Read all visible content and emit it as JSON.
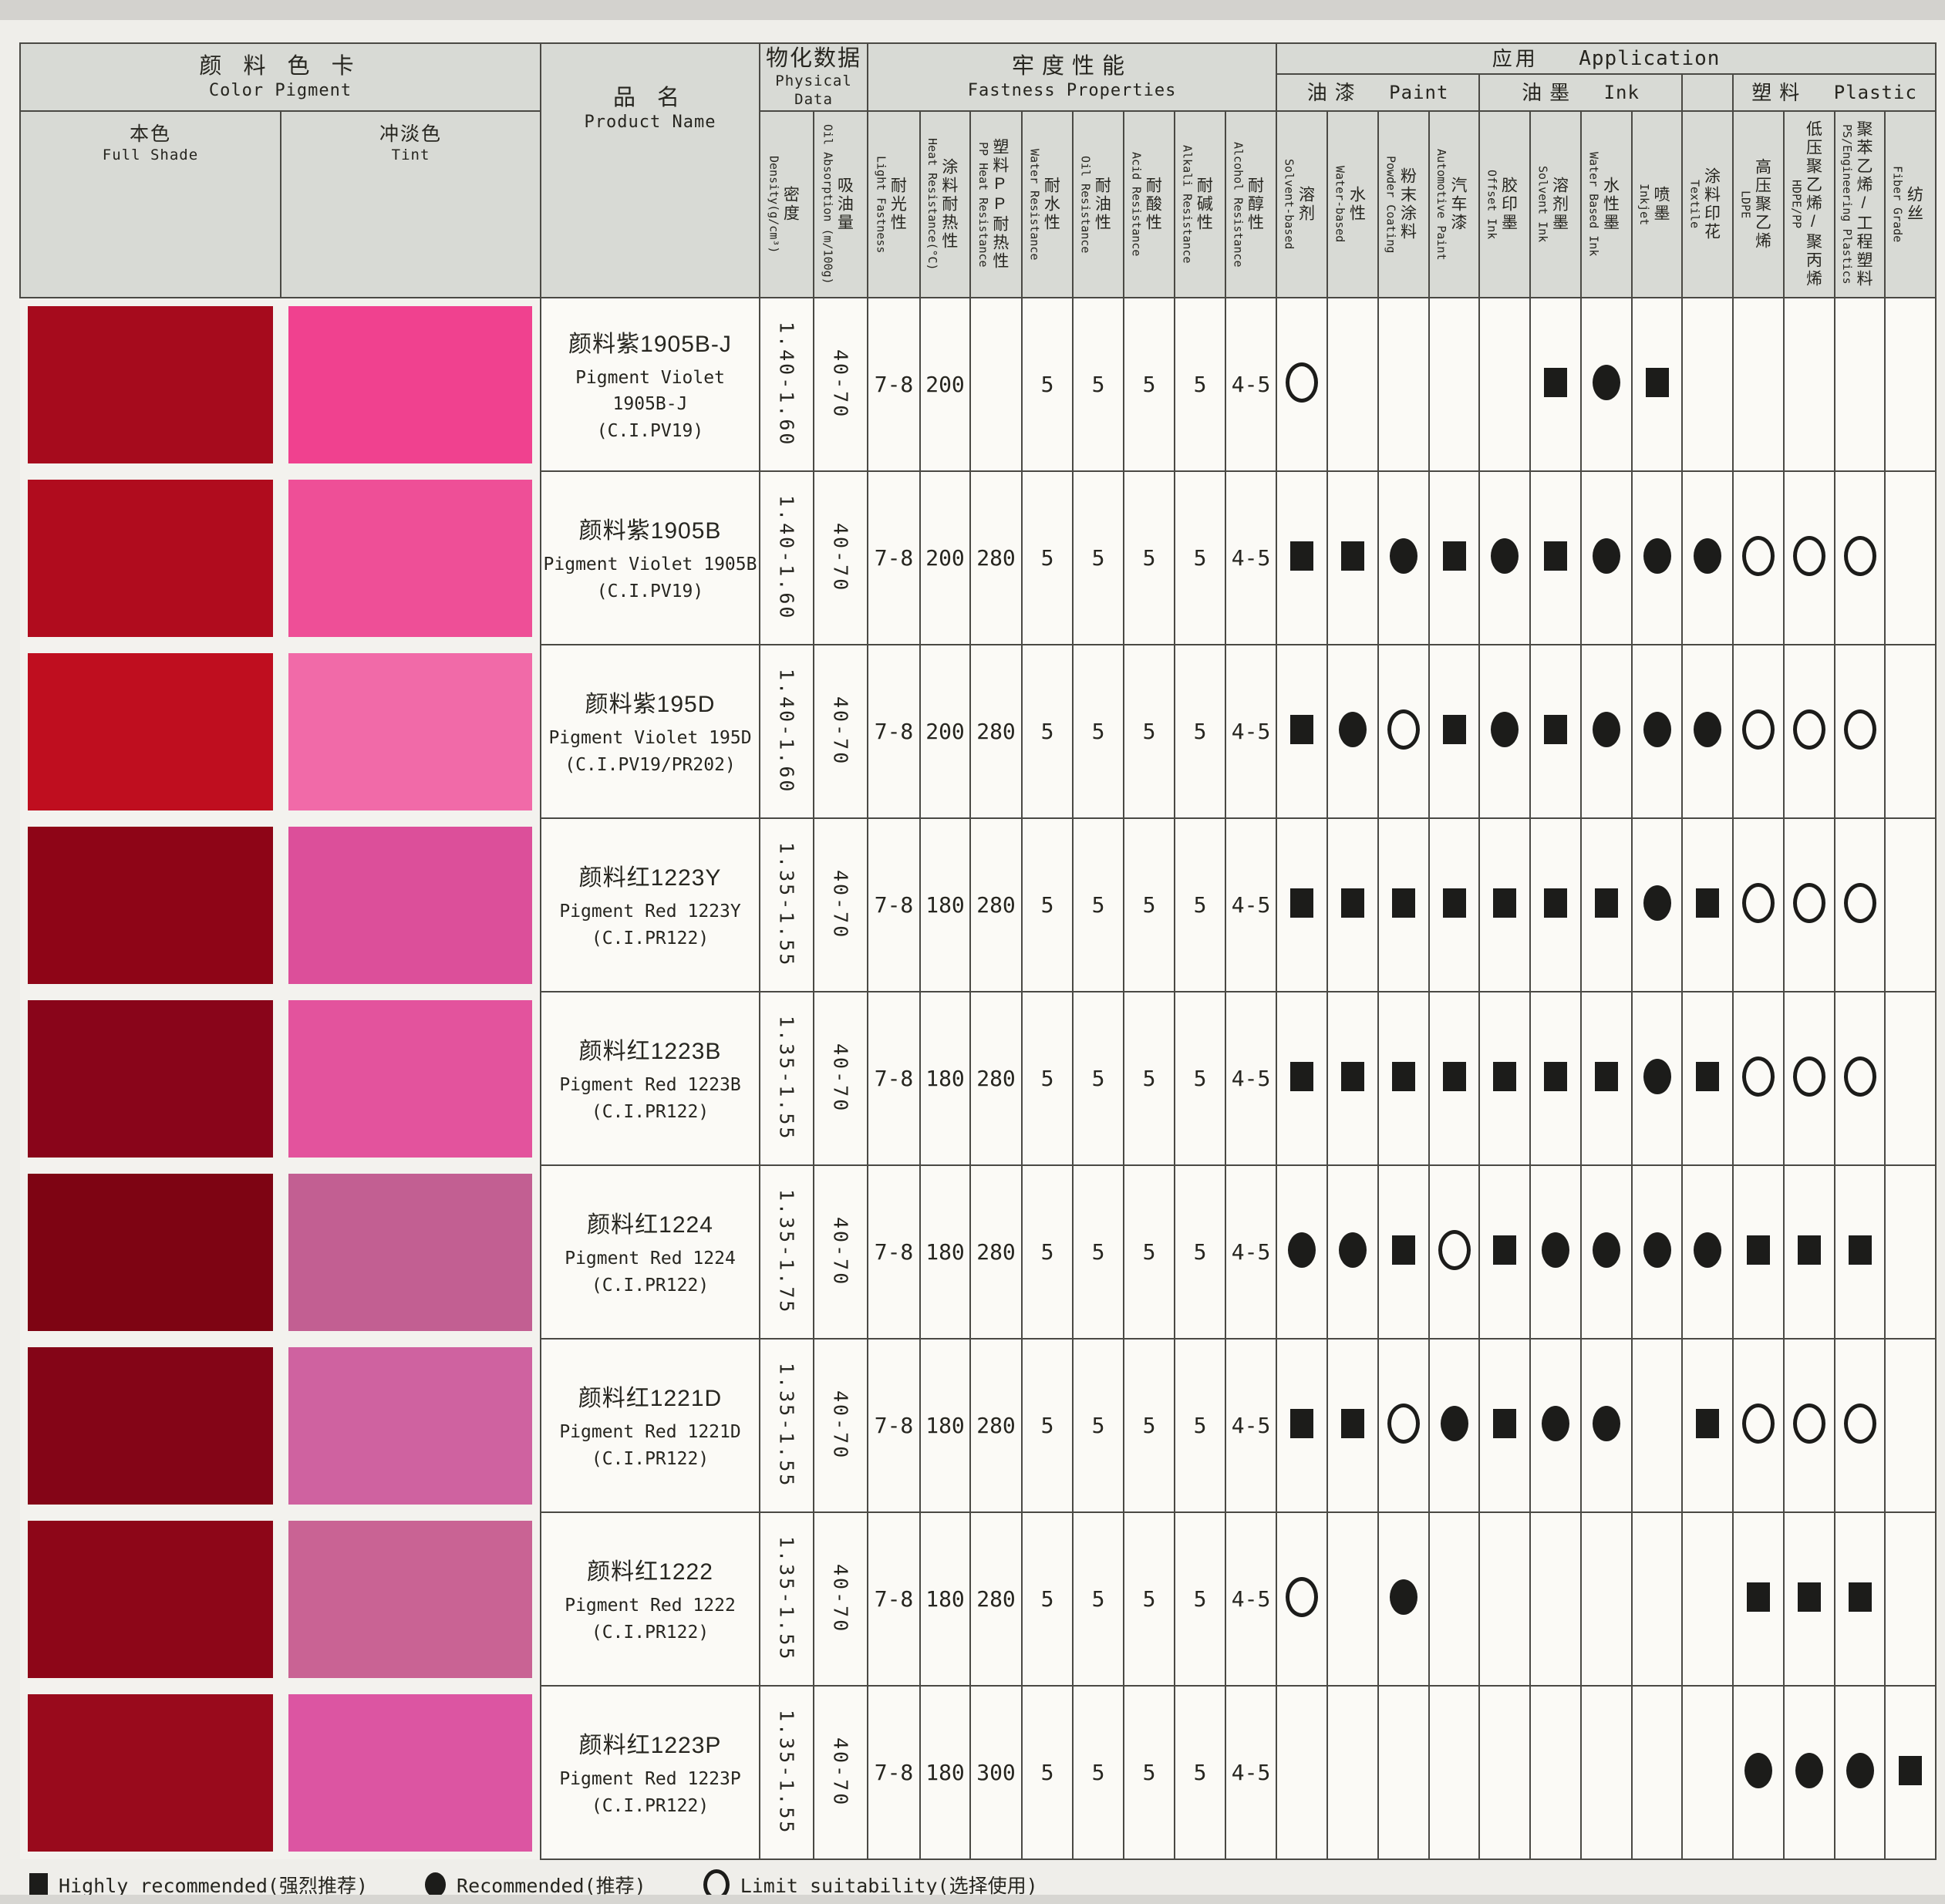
{
  "header": {
    "color_pigment": {
      "zh": "颜 料 色 卡",
      "en": "Color Pigment"
    },
    "full_shade": {
      "zh": "本色",
      "en": "Full Shade"
    },
    "tint": {
      "zh": "冲淡色",
      "en": "Tint"
    },
    "product_name": {
      "zh": "品 名",
      "en": "Product Name"
    },
    "physical_data": {
      "zh": "物化数据",
      "en": "Physical Data"
    },
    "fastness": {
      "zh": "牢度性能",
      "en": "Fastness Properties"
    },
    "application": {
      "zh": "应用",
      "en": "Application"
    },
    "paint": {
      "zh": "油漆",
      "en": "Paint"
    },
    "ink": {
      "zh": "油墨",
      "en": "Ink"
    },
    "plastic": {
      "zh": "塑料",
      "en": "Plastic"
    },
    "physical_cols": [
      {
        "key": "density",
        "zh": "密度",
        "en": "Density(g/cm³)"
      },
      {
        "key": "oil-absorption",
        "zh": "吸油量",
        "en": "Oil Absorption (m/100g)"
      }
    ],
    "fastness_cols": [
      {
        "key": "light-fastness",
        "zh": "耐光性",
        "en": "Light Fastness"
      },
      {
        "key": "heat-resistance",
        "zh": "涂料耐热性",
        "en": "Heat Resistance(°C)"
      },
      {
        "key": "pp-heat-resistance",
        "zh": "塑料PP耐热性",
        "en": "PP Heat Resistance"
      },
      {
        "key": "water-resistance",
        "zh": "耐水性",
        "en": "Water Resistance"
      },
      {
        "key": "oil-resistance",
        "zh": "耐油性",
        "en": "Oil Resistance"
      },
      {
        "key": "acid-resistance",
        "zh": "耐酸性",
        "en": "Acid Resistance"
      },
      {
        "key": "alkali-resistance",
        "zh": "耐碱性",
        "en": "Alkali Resistance"
      },
      {
        "key": "alcohol-resistance",
        "zh": "耐醇性",
        "en": "Alcohol Resistance"
      }
    ],
    "app_cols": [
      {
        "key": "paint-solvent",
        "zh": "溶剂",
        "en": "Solvent-based"
      },
      {
        "key": "paint-water",
        "zh": "水性",
        "en": "Water-based"
      },
      {
        "key": "paint-powder",
        "zh": "粉末涂料",
        "en": "Powder Coating"
      },
      {
        "key": "paint-automotive",
        "zh": "汽车漆",
        "en": "Automotive Paint"
      },
      {
        "key": "ink-offset",
        "zh": "胶印墨",
        "en": "Offset Ink"
      },
      {
        "key": "ink-solvent",
        "zh": "溶剂墨",
        "en": "Solvent Ink"
      },
      {
        "key": "ink-water",
        "zh": "水性墨",
        "en": "Water Based Ink"
      },
      {
        "key": "ink-inkjet",
        "zh": "喷墨",
        "en": "Inkjet"
      },
      {
        "key": "textile",
        "zh": "涂料印花",
        "en": "Textile"
      },
      {
        "key": "plastic-ldpe",
        "zh": "高压聚乙烯",
        "en": "LDPE"
      },
      {
        "key": "plastic-hdpe-pp",
        "zh": "低压聚乙烯/聚丙烯",
        "en": "HDPE/PP"
      },
      {
        "key": "plastic-ps-eng",
        "zh": "聚苯乙烯/工程塑料",
        "en": "PS/Engineering Plastics"
      },
      {
        "key": "plastic-fiber",
        "zh": "纺丝",
        "en": "Fiber Grade"
      }
    ]
  },
  "rows": [
    {
      "name_zh": "颜料紫1905B-J",
      "name_en": "Pigment Violet 1905B-J",
      "ci": "(C.I.PV19)",
      "full_shade": "#a60b1d",
      "tint": "#f0418f",
      "density": "1.40-1.60",
      "oil_absorption": "40-70",
      "light_fastness": "7-8",
      "heat_resistance": "200",
      "pp_heat_resistance": "",
      "water": "5",
      "oil": "5",
      "acid": "5",
      "alkali": "5",
      "alcohol": "4-5",
      "apps": [
        "○",
        "",
        "",
        "",
        "",
        "■",
        "●",
        "■",
        "",
        "",
        "",
        "",
        ""
      ]
    },
    {
      "name_zh": "颜料紫1905B",
      "name_en": "Pigment Violet 1905B",
      "ci": "(C.I.PV19)",
      "full_shade": "#b00c1e",
      "tint": "#ee4f97",
      "density": "1.40-1.60",
      "oil_absorption": "40-70",
      "light_fastness": "7-8",
      "heat_resistance": "200",
      "pp_heat_resistance": "280",
      "water": "5",
      "oil": "5",
      "acid": "5",
      "alkali": "5",
      "alcohol": "4-5",
      "apps": [
        "■",
        "■",
        "●",
        "■",
        "●",
        "■",
        "●",
        "●",
        "●",
        "○",
        "○",
        "○",
        ""
      ]
    },
    {
      "name_zh": "颜料紫195D",
      "name_en": "Pigment Violet 195D",
      "ci": "(C.I.PV19/PR202)",
      "full_shade": "#bf0e1f",
      "tint": "#f16aa8",
      "density": "1.40-1.60",
      "oil_absorption": "40-70",
      "light_fastness": "7-8",
      "heat_resistance": "200",
      "pp_heat_resistance": "280",
      "water": "5",
      "oil": "5",
      "acid": "5",
      "alkali": "5",
      "alcohol": "4-5",
      "apps": [
        "■",
        "●",
        "○",
        "■",
        "●",
        "■",
        "●",
        "●",
        "●",
        "○",
        "○",
        "○",
        ""
      ]
    },
    {
      "name_zh": "颜料红1223Y",
      "name_en": "Pigment Red 1223Y",
      "ci": "(C.I.PR122)",
      "full_shade": "#8e0517",
      "tint": "#dc4f9a",
      "density": "1.35-1.55",
      "oil_absorption": "40-70",
      "light_fastness": "7-8",
      "heat_resistance": "180",
      "pp_heat_resistance": "280",
      "water": "5",
      "oil": "5",
      "acid": "5",
      "alkali": "5",
      "alcohol": "4-5",
      "apps": [
        "■",
        "■",
        "■",
        "■",
        "■",
        "■",
        "■",
        "●",
        "■",
        "○",
        "○",
        "○",
        ""
      ]
    },
    {
      "name_zh": "颜料红1223B",
      "name_en": "Pigment Red 1223B",
      "ci": "(C.I.PR122)",
      "full_shade": "#89051a",
      "tint": "#e3539d",
      "density": "1.35-1.55",
      "oil_absorption": "40-70",
      "light_fastness": "7-8",
      "heat_resistance": "180",
      "pp_heat_resistance": "280",
      "water": "5",
      "oil": "5",
      "acid": "5",
      "alkali": "5",
      "alcohol": "4-5",
      "apps": [
        "■",
        "■",
        "■",
        "■",
        "■",
        "■",
        "■",
        "●",
        "■",
        "○",
        "○",
        "○",
        ""
      ]
    },
    {
      "name_zh": "颜料红1224",
      "name_en": "Pigment Red 1224",
      "ci": "(C.I.PR122)",
      "full_shade": "#7e0413",
      "tint": "#c25f92",
      "density": "1.35-1.75",
      "oil_absorption": "40-70",
      "light_fastness": "7-8",
      "heat_resistance": "180",
      "pp_heat_resistance": "280",
      "water": "5",
      "oil": "5",
      "acid": "5",
      "alkali": "5",
      "alcohol": "4-5",
      "apps": [
        "●",
        "●",
        "■",
        "○",
        "■",
        "●",
        "●",
        "●",
        "●",
        "■",
        "■",
        "■",
        ""
      ]
    },
    {
      "name_zh": "颜料红1221D",
      "name_en": "Pigment Red 1221D",
      "ci": "(C.I.PR122)",
      "full_shade": "#840517",
      "tint": "#cf62a0",
      "density": "1.35-1.55",
      "oil_absorption": "40-70",
      "light_fastness": "7-8",
      "heat_resistance": "180",
      "pp_heat_resistance": "280",
      "water": "5",
      "oil": "5",
      "acid": "5",
      "alkali": "5",
      "alcohol": "4-5",
      "apps": [
        "■",
        "■",
        "○",
        "●",
        "■",
        "●",
        "●",
        "",
        "■",
        "○",
        "○",
        "○",
        ""
      ]
    },
    {
      "name_zh": "颜料红1222",
      "name_en": "Pigment Red 1222",
      "ci": "(C.I.PR122)",
      "full_shade": "#8d0618",
      "tint": "#c96394",
      "density": "1.35-1.55",
      "oil_absorption": "40-70",
      "light_fastness": "7-8",
      "heat_resistance": "180",
      "pp_heat_resistance": "280",
      "water": "5",
      "oil": "5",
      "acid": "5",
      "alkali": "5",
      "alcohol": "4-5",
      "apps": [
        "○",
        "",
        "●",
        "",
        "",
        "",
        "",
        "",
        "",
        "■",
        "■",
        "■",
        ""
      ]
    },
    {
      "name_zh": "颜料红1223P",
      "name_en": "Pigment Red 1223P",
      "ci": "(C.I.PR122)",
      "full_shade": "#990a1c",
      "tint": "#dc55a2",
      "density": "1.35-1.55",
      "oil_absorption": "40-70",
      "light_fastness": "7-8",
      "heat_resistance": "180",
      "pp_heat_resistance": "300",
      "water": "5",
      "oil": "5",
      "acid": "5",
      "alkali": "5",
      "alcohol": "4-5",
      "apps": [
        "",
        "",
        "",
        "",
        "",
        "",
        "",
        "",
        "",
        "●",
        "●",
        "●",
        "■"
      ]
    }
  ],
  "legend": [
    {
      "symbol": "■",
      "label": "Highly recommended(强烈推荐)"
    },
    {
      "symbol": "●",
      "label": "Recommended(推荐)"
    },
    {
      "symbol": "○",
      "label": "Limit suitability(选择使用)"
    }
  ]
}
